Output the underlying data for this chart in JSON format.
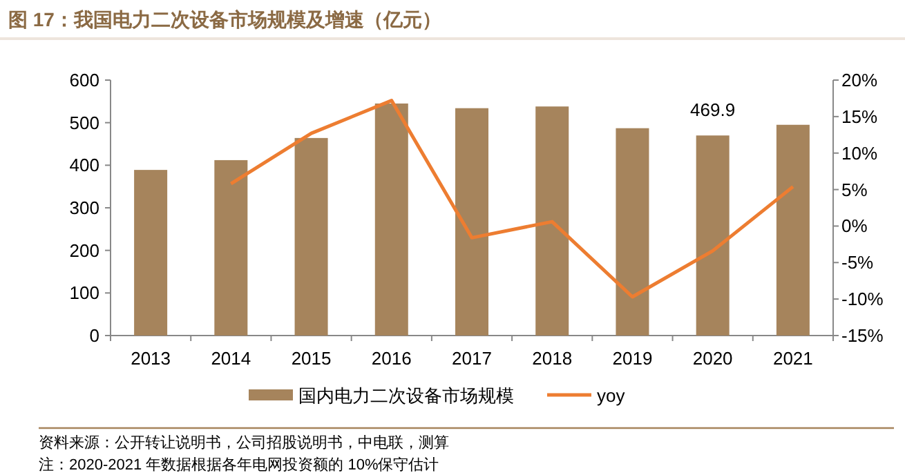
{
  "chart_data": {
    "type": "bar",
    "title": "图 17：我国电力二次设备市场规模及增速（亿元）",
    "categories": [
      "2013",
      "2014",
      "2015",
      "2016",
      "2017",
      "2018",
      "2019",
      "2020",
      "2021"
    ],
    "series": [
      {
        "name": "国内电力二次设备市场规模",
        "color": "#a6845c",
        "values": [
          389,
          412,
          464,
          545,
          534,
          538,
          487,
          469.9,
          495
        ],
        "value_labels": [
          null,
          null,
          null,
          null,
          null,
          null,
          null,
          "469.9",
          null
        ]
      },
      {
        "name": "yoy",
        "type": "line",
        "axis": "y2",
        "color": "#ed7d31",
        "values": [
          null,
          5.8,
          12.7,
          17.2,
          -1.6,
          0.6,
          -9.7,
          -3.4,
          5.4
        ]
      }
    ],
    "ylim": [
      0,
      600
    ],
    "yticks": [
      0,
      100,
      200,
      300,
      400,
      500,
      600
    ],
    "y2lim": [
      -15,
      20
    ],
    "y2ticks": [
      {
        "value": -15,
        "label": "-15%"
      },
      {
        "value": -10,
        "label": "-10%"
      },
      {
        "value": -5,
        "label": "-5%"
      },
      {
        "value": 0,
        "label": "0%"
      },
      {
        "value": 5,
        "label": "5%"
      },
      {
        "value": 10,
        "label": "10%"
      },
      {
        "value": 15,
        "label": "15%"
      },
      {
        "value": 20,
        "label": "20%"
      }
    ],
    "legend": "bottom",
    "grid": false,
    "annotations": [
      "资料来源：公开转让说明书，公司招股说明书，中电联，测算",
      "注：2020-2021 年数据根据各年电网投资额的 10%保守估计"
    ]
  }
}
